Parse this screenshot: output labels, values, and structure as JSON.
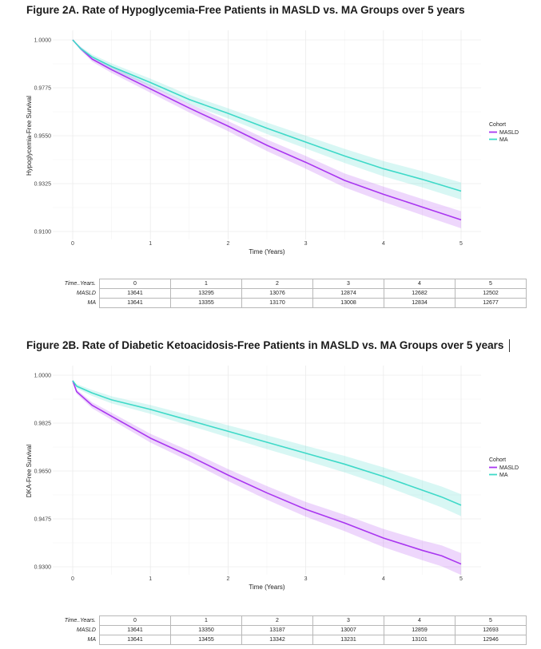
{
  "figures": [
    {
      "id": "a",
      "title": "Figure 2A. Rate of Hypoglycemia-Free Patients in MASLD vs. MA Groups over 5 years",
      "risk_table": {
        "header_label": "Time..Years.",
        "times": [
          "0",
          "1",
          "2",
          "3",
          "4",
          "5"
        ],
        "rows": [
          {
            "label": "MASLD",
            "values": [
              "13641",
              "13295",
              "13076",
              "12874",
              "12682",
              "12502"
            ]
          },
          {
            "label": "MA",
            "values": [
              "13641",
              "13355",
              "13170",
              "13008",
              "12834",
              "12677"
            ]
          }
        ]
      }
    },
    {
      "id": "b",
      "title": "Figure 2B. Rate of Diabetic Ketoacidosis-Free Patients in MASLD vs. MA Groups over 5 years",
      "risk_table": {
        "header_label": "Time..Years.",
        "times": [
          "0",
          "1",
          "2",
          "3",
          "4",
          "5"
        ],
        "rows": [
          {
            "label": "MASLD",
            "values": [
              "13641",
              "13350",
              "13187",
              "13007",
              "12859",
              "12693"
            ]
          },
          {
            "label": "MA",
            "values": [
              "13641",
              "13455",
              "13342",
              "13231",
              "13101",
              "12946"
            ]
          }
        ]
      }
    }
  ],
  "chart_data": [
    {
      "type": "line",
      "xlabel": "Time (Years)",
      "ylabel": "Hypoglycemia-Free Survival",
      "xlim": [
        0,
        5
      ],
      "ylim": [
        0.91,
        1.0
      ],
      "x_ticks": [
        "0",
        "1",
        "2",
        "3",
        "4",
        "5"
      ],
      "y_ticks": [
        "0.9100",
        "0.9325",
        "0.9550",
        "0.9775",
        "1.0000"
      ],
      "grid": true,
      "legend": {
        "title": "Cohort",
        "position": "right"
      },
      "x": [
        0,
        0.1,
        0.25,
        0.5,
        1,
        1.5,
        2,
        2.5,
        3,
        3.5,
        4,
        4.5,
        5
      ],
      "series": [
        {
          "name": "MASLD",
          "color": "#a936f0",
          "values": [
            1.0,
            0.996,
            0.991,
            0.986,
            0.977,
            0.968,
            0.9595,
            0.9505,
            0.9425,
            0.934,
            0.9275,
            0.9215,
            0.9155
          ],
          "ci_half_width": [
            0.0,
            0.0008,
            0.0012,
            0.0015,
            0.0018,
            0.0021,
            0.0024,
            0.0027,
            0.003,
            0.0033,
            0.0036,
            0.0038,
            0.004
          ]
        },
        {
          "name": "MA",
          "color": "#3ed9c8",
          "values": [
            1.0,
            0.996,
            0.992,
            0.9875,
            0.98,
            0.972,
            0.9655,
            0.9585,
            0.952,
            0.9455,
            0.9395,
            0.9345,
            0.929
          ],
          "ci_half_width": [
            0.0,
            0.0008,
            0.0012,
            0.0015,
            0.0018,
            0.0021,
            0.0024,
            0.0027,
            0.003,
            0.0033,
            0.0036,
            0.0038,
            0.004
          ]
        }
      ]
    },
    {
      "type": "line",
      "xlabel": "Time (Years)",
      "ylabel": "DKA-Free Survival",
      "xlim": [
        0,
        5
      ],
      "ylim": [
        0.93,
        1.0
      ],
      "x_ticks": [
        "0",
        "1",
        "2",
        "3",
        "4",
        "5"
      ],
      "y_ticks": [
        "0.9300",
        "0.9475",
        "0.9650",
        "0.9825",
        "1.0000"
      ],
      "grid": true,
      "legend": {
        "title": "Cohort",
        "position": "right"
      },
      "x": [
        0,
        0.05,
        0.25,
        0.5,
        1,
        1.5,
        2,
        2.5,
        3,
        3.5,
        4,
        4.5,
        4.75,
        5
      ],
      "series": [
        {
          "name": "MASLD",
          "color": "#a936f0",
          "values": [
            0.998,
            0.994,
            0.989,
            0.985,
            0.977,
            0.9705,
            0.9635,
            0.957,
            0.951,
            0.946,
            0.9405,
            0.936,
            0.934,
            0.931
          ],
          "ci_half_width": [
            0.0,
            0.0008,
            0.0011,
            0.0013,
            0.0016,
            0.0019,
            0.0022,
            0.0025,
            0.0027,
            0.003,
            0.0033,
            0.0036,
            0.0038,
            0.004
          ]
        },
        {
          "name": "MA",
          "color": "#3ed9c8",
          "values": [
            0.998,
            0.996,
            0.9935,
            0.991,
            0.9875,
            0.9835,
            0.9795,
            0.9755,
            0.9715,
            0.9675,
            0.963,
            0.958,
            0.9555,
            0.9525
          ],
          "ci_half_width": [
            0.0,
            0.0008,
            0.0011,
            0.0013,
            0.0016,
            0.0019,
            0.0022,
            0.0025,
            0.0027,
            0.003,
            0.0033,
            0.0036,
            0.0038,
            0.004
          ]
        }
      ]
    }
  ]
}
